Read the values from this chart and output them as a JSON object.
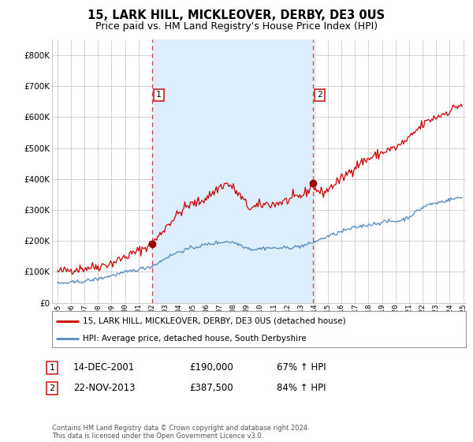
{
  "title": "15, LARK HILL, MICKLEOVER, DERBY, DE3 0US",
  "subtitle": "Price paid vs. HM Land Registry's House Price Index (HPI)",
  "legend_line1": "15, LARK HILL, MICKLEOVER, DERBY, DE3 0US (detached house)",
  "legend_line2": "HPI: Average price, detached house, South Derbyshire",
  "footnote": "Contains HM Land Registry data © Crown copyright and database right 2024.\nThis data is licensed under the Open Government Licence v3.0.",
  "sale1_label": "1",
  "sale1_date": "14-DEC-2001",
  "sale1_price": "£190,000",
  "sale1_hpi": "67% ↑ HPI",
  "sale2_label": "2",
  "sale2_date": "22-NOV-2013",
  "sale2_price": "£387,500",
  "sale2_hpi": "84% ↑ HPI",
  "red_color": "#cc0000",
  "blue_color": "#5588bb",
  "vline_color": "#dd4444",
  "shade_color": "#ddeeff",
  "background_color": "#ffffff",
  "grid_color": "#cccccc",
  "ylim": [
    0,
    850000
  ],
  "yticks": [
    0,
    100000,
    200000,
    300000,
    400000,
    500000,
    600000,
    700000,
    800000
  ],
  "sale1_year": 2002.0,
  "sale1_value": 190000,
  "sale2_year": 2013.9,
  "sale2_value": 387500,
  "xlim_left": 1994.6,
  "xlim_right": 2025.2
}
